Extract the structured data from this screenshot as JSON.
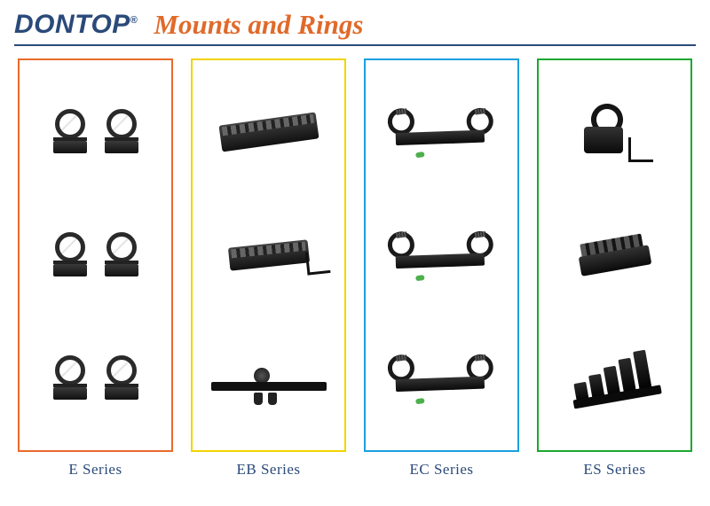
{
  "brand": "DONTOP",
  "reg_mark": "®",
  "page_title": "Mounts and Rings",
  "brand_color": "#2a4a7a",
  "title_color": "#e06a2a",
  "rule_color": "#2a4a7a",
  "columns": [
    {
      "label": "E  Series",
      "border_color": "#e86a2a",
      "items_per_row": 2,
      "rows": 3,
      "item_type": "ring-mount"
    },
    {
      "label": "EB  Series",
      "border_color": "#f2d400",
      "items_per_row": 1,
      "rows": 3,
      "item_type": "rail"
    },
    {
      "label": "EC  Series",
      "border_color": "#1aa0de",
      "items_per_row": 1,
      "rows": 3,
      "item_type": "cantilever"
    },
    {
      "label": "ES  Series",
      "border_color": "#1aa82e",
      "items_per_row": 1,
      "rows": 3,
      "item_type": "accessory"
    }
  ]
}
